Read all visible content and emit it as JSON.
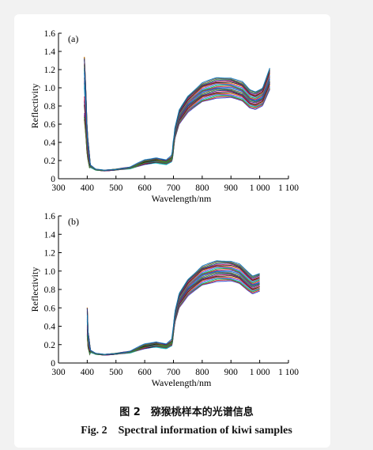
{
  "figure": {
    "caption_cn": "图 2　猕猴桃样本的光谱信息",
    "caption_en": "Fig. 2　Spectral information of kiwi samples"
  },
  "chart_data": [
    {
      "type": "line",
      "panel_label": "(a)",
      "xlabel": "Wavelength/nm",
      "ylabel": "Reflectivity",
      "xlim": [
        300,
        1100
      ],
      "ylim": [
        0,
        1.6
      ],
      "x_ticks": [
        "300",
        "400",
        "500",
        "600",
        "700",
        "800",
        "900",
        "1 000",
        "1 100"
      ],
      "y_ticks": [
        "0",
        "0.2",
        "0.4",
        "0.6",
        "0.8",
        "1.0",
        "1.2",
        "1.4",
        "1.6"
      ],
      "grid": false,
      "series_count": 24,
      "x_start": 390,
      "x_end": 1035,
      "mean_profile": {
        "x": [
          390,
          395,
          400,
          410,
          430,
          460,
          500,
          550,
          600,
          640,
          675,
          695,
          705,
          720,
          750,
          800,
          850,
          900,
          940,
          965,
          985,
          1010,
          1035
        ],
        "y": [
          1.0,
          0.75,
          0.38,
          0.14,
          0.1,
          0.09,
          0.1,
          0.12,
          0.18,
          0.2,
          0.18,
          0.22,
          0.5,
          0.68,
          0.82,
          0.95,
          1.0,
          1.0,
          0.96,
          0.88,
          0.86,
          0.9,
          1.1
        ]
      }
    },
    {
      "type": "line",
      "panel_label": "(b)",
      "xlabel": "Wavelength/nm",
      "ylabel": "Reflectivity",
      "xlim": [
        300,
        1100
      ],
      "ylim": [
        0,
        1.6
      ],
      "x_ticks": [
        "300",
        "400",
        "500",
        "600",
        "700",
        "800",
        "900",
        "1 000",
        "1 100"
      ],
      "y_ticks": [
        "0",
        "0.2",
        "0.4",
        "0.6",
        "0.8",
        "1.0",
        "1.2",
        "1.4",
        "1.6"
      ],
      "grid": false,
      "series_count": 24,
      "x_start": 400,
      "x_end": 1000,
      "mean_profile": {
        "x": [
          400,
          403,
          410,
          430,
          460,
          500,
          550,
          600,
          640,
          675,
          695,
          705,
          720,
          750,
          800,
          850,
          900,
          930,
          955,
          975,
          1000
        ],
        "y": [
          0.45,
          0.25,
          0.13,
          0.1,
          0.09,
          0.1,
          0.12,
          0.18,
          0.2,
          0.18,
          0.22,
          0.5,
          0.68,
          0.82,
          0.95,
          1.0,
          1.0,
          0.97,
          0.9,
          0.85,
          0.88
        ]
      }
    }
  ],
  "palette": [
    "#1f3fd0",
    "#d81b1b",
    "#159a33",
    "#12b0c8",
    "#8a2be2",
    "#e07000",
    "#101010",
    "#c2185b",
    "#1a237e",
    "#2e7d32",
    "#6d4c41",
    "#0277bd"
  ]
}
